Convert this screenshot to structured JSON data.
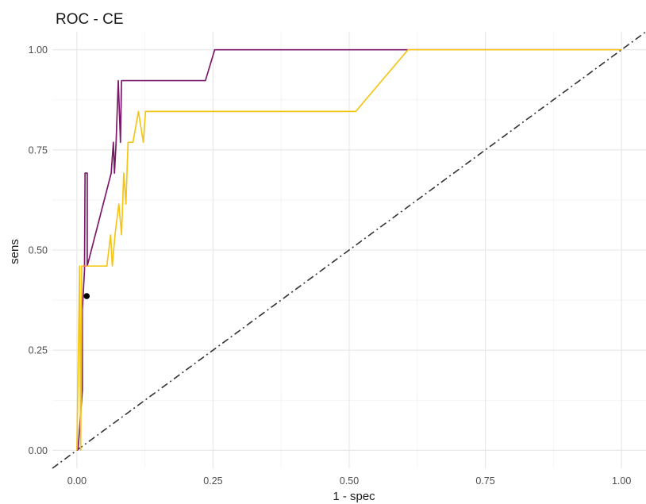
{
  "chart_data": {
    "type": "line",
    "title": "ROC - CE",
    "xlabel": "1 - spec",
    "ylabel": "sens",
    "xlim": [
      -0.045,
      1.045
    ],
    "ylim": [
      -0.045,
      1.045
    ],
    "x_ticks": [
      0,
      0.25,
      0.5,
      0.75,
      1
    ],
    "x_tick_labels": [
      "0.00",
      "0.25",
      "0.50",
      "0.75",
      "1.00"
    ],
    "y_ticks": [
      0,
      0.25,
      0.5,
      0.75,
      1
    ],
    "y_tick_labels": [
      "0.00",
      "0.25",
      "0.50",
      "0.75",
      "1.00"
    ],
    "grid": true,
    "legend": "none",
    "series": [
      {
        "color": "#7b1a6b",
        "x": [
          0.002,
          0.01,
          0.01,
          0.014,
          0.015,
          0.019,
          0.019,
          0.063,
          0.067,
          0.069,
          0.072,
          0.076,
          0.08,
          0.082,
          0.085,
          0.089,
          0.236,
          0.253,
          0.605,
          1.0
        ],
        "y": [
          0.0,
          0.15,
          0.35,
          0.45,
          0.692,
          0.692,
          0.46,
          0.692,
          0.769,
          0.692,
          0.769,
          0.923,
          0.769,
          0.923,
          0.923,
          0.923,
          0.923,
          1.0,
          1.0,
          1.0
        ]
      },
      {
        "color": "#f5c518",
        "x": [
          0.0,
          0.005,
          0.007,
          0.009,
          0.01,
          0.012,
          0.015,
          0.02,
          0.055,
          0.062,
          0.065,
          0.07,
          0.077,
          0.082,
          0.086,
          0.09,
          0.094,
          0.103,
          0.113,
          0.122,
          0.126,
          0.135,
          0.512,
          0.608,
          1.0
        ],
        "y": [
          0.0,
          0.46,
          0.0,
          0.46,
          0.46,
          0.46,
          0.46,
          0.46,
          0.46,
          0.538,
          0.46,
          0.538,
          0.615,
          0.538,
          0.692,
          0.615,
          0.769,
          0.769,
          0.846,
          0.769,
          0.846,
          0.846,
          0.846,
          1.0,
          1.0
        ]
      },
      {
        "color": "#ff7a6e",
        "x": [
          0.012,
          0.018
        ],
        "y": [
          0.46,
          0.46
        ]
      }
    ],
    "reference_line": {
      "x": [
        -0.045,
        1.045
      ],
      "y": [
        -0.045,
        1.045
      ],
      "style": "dashdot",
      "color": "#333333"
    },
    "highlight_point": {
      "x": 0.018,
      "y": 0.385,
      "color": "#000000"
    }
  }
}
